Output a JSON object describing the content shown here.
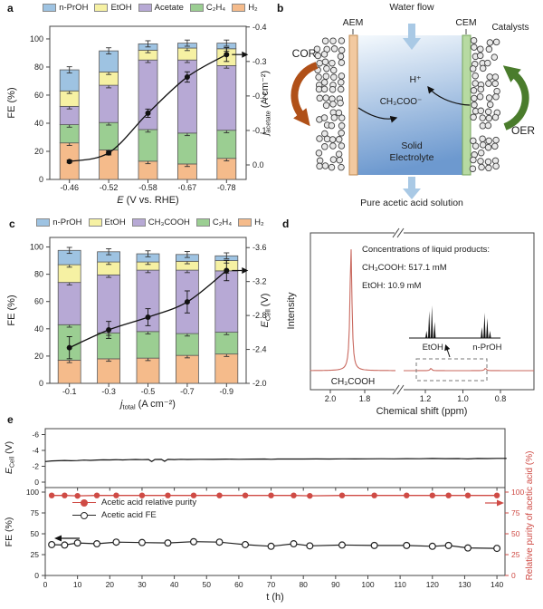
{
  "panel_labels": {
    "a": "a",
    "b": "b",
    "c": "c",
    "d": "d",
    "e": "e"
  },
  "colors": {
    "n_proh": "#9ec3e2",
    "etoh": "#f6f1a3",
    "acetate": "#b7a9d5",
    "c2h4": "#9bce92",
    "h2": "#f5bb8b",
    "nmr_trace": "#c9695f",
    "stability_red": "#cf4b45",
    "aem_fill": "#f2c9a0",
    "aem_stroke": "#bf8a52",
    "cem_fill": "#b7daa2",
    "cem_stroke": "#76a45c",
    "electrolyte_top": "#f4f9fd",
    "electrolyte_bottom": "#6d99cf",
    "cor_arrow": "#b05018",
    "oer_arrow": "#4a7c2c",
    "water_arrow": "#a9c9e5",
    "catalyst_fill": "#e9e9e9",
    "catalyst_stroke": "#3f3f3f"
  },
  "panel_b": {
    "water_flow": "Water flow",
    "aem": "AEM",
    "cem": "CEM",
    "catalysts": "Catalysts",
    "cor": "COR",
    "oer": "OER",
    "h_plus": "H⁺",
    "acetate_ion": "CH₃COO⁻",
    "solid_electrolyte": "Solid\nElectrolyte",
    "bottom_label": "Pure acetic acid solution"
  },
  "chart_data": [
    {
      "id": "a",
      "type": "bar",
      "categories": [
        "-0.46",
        "-0.52",
        "-0.58",
        "-0.67",
        "-0.78"
      ],
      "xlabel": {
        "sym": "E",
        "sub": "",
        "rest": " (V vs. RHE)"
      },
      "ylabel_left": "FE (%)",
      "yticks_left": [
        0,
        20,
        40,
        60,
        80,
        100
      ],
      "ylim_left": [
        0,
        109
      ],
      "ylabel_right": {
        "sym": "j",
        "sub": "acetate",
        "rest": " (A cm⁻²)"
      },
      "yticks_right": [
        -0.4,
        -0.3,
        -0.2,
        -0.1,
        0.0
      ],
      "ylim_right": [
        0.042,
        -0.402
      ],
      "seg_err": 1.8,
      "top_err": 2.2,
      "series": [
        {
          "name": "n-PrOH",
          "color_key": "n_proh",
          "values": [
            15,
            15,
            4.5,
            3.5,
            4
          ]
        },
        {
          "name": "EtOH",
          "color_key": "etoh",
          "values": [
            11,
            9.5,
            7,
            8.5,
            12
          ]
        },
        {
          "name": "Acetate",
          "color_key": "acetate",
          "values": [
            13,
            26.5,
            49.5,
            52,
            46
          ]
        },
        {
          "name": "C₂H₄",
          "color_key": "c2h4",
          "values": [
            13,
            19.5,
            22.5,
            22,
            20
          ]
        },
        {
          "name": "H₂",
          "color_key": "h2",
          "values": [
            26,
            21,
            13,
            11,
            15
          ]
        }
      ],
      "line": {
        "name": "j_acetate",
        "axis": "right",
        "values": [
          -0.01,
          -0.035,
          -0.15,
          -0.255,
          -0.32
        ],
        "err": [
          0.004,
          0.006,
          0.012,
          0.015,
          0.02
        ]
      }
    },
    {
      "id": "c",
      "type": "bar",
      "categories": [
        "-0.1",
        "-0.3",
        "-0.5",
        "-0.7",
        "-0.9"
      ],
      "xlabel": {
        "sym": "j",
        "sub": "total",
        "rest": " (A cm⁻²)"
      },
      "ylabel_left": "FE (%)",
      "yticks_left": [
        0,
        20,
        40,
        60,
        80,
        100
      ],
      "ylim_left": [
        0,
        107
      ],
      "ylabel_right": {
        "sym": "E",
        "sub": "Cell",
        "rest": " (V)"
      },
      "yticks_right": [
        -2.0,
        -2.4,
        -2.8,
        -3.2,
        -3.6
      ],
      "ylim_right": [
        -2.0,
        -3.72
      ],
      "seg_err": 1.8,
      "top_err": 2.2,
      "series": [
        {
          "name": "n-PrOH",
          "color_key": "n_proh",
          "values": [
            10.5,
            7.5,
            6,
            5,
            3.5
          ]
        },
        {
          "name": "EtOH",
          "color_key": "etoh",
          "values": [
            13,
            9.5,
            6,
            6.5,
            7.5
          ]
        },
        {
          "name": "CH₃COOH",
          "color_key": "acetate",
          "values": [
            31,
            42.5,
            45,
            46.5,
            45
          ]
        },
        {
          "name": "C₂H₄",
          "color_key": "c2h4",
          "values": [
            26,
            19,
            19.5,
            16,
            16
          ]
        },
        {
          "name": "H₂",
          "color_key": "h2",
          "values": [
            17,
            18,
            18.5,
            20.5,
            21.5
          ]
        }
      ],
      "line": {
        "name": "E_cell",
        "axis": "right",
        "values": [
          -2.42,
          -2.63,
          -2.78,
          -2.96,
          -3.33
        ],
        "err": [
          0.13,
          0.1,
          0.1,
          0.13,
          0.12
        ]
      }
    },
    {
      "id": "d",
      "type": "nmr",
      "xlabel": "Chemical shift (ppm)",
      "ylabel": "Intensity",
      "x_ticks_left": [
        2.0,
        1.8
      ],
      "x_ticks_right": [
        1.2,
        1.0,
        0.8
      ],
      "annotation_lines": [
        "Concentrations of liquid products:",
        "CH₃COOH: 517.1 mM",
        "EtOH: 10.9 mM"
      ],
      "main_peak": {
        "label": "CH₃COOH",
        "ppm": 1.88
      },
      "inset": {
        "peaks": [
          {
            "label": "EtOH",
            "ppm": 1.17,
            "lines": [
              [
                -5,
                8
              ],
              [
                -2,
                30
              ],
              [
                1,
                36
              ],
              [
                4,
                18
              ]
            ]
          },
          {
            "label": "n-PrOH",
            "ppm": 0.88,
            "lines": [
              [
                -4,
                12
              ],
              [
                -1,
                28
              ],
              [
                2,
                22
              ],
              [
                5,
                8
              ]
            ]
          }
        ]
      }
    },
    {
      "id": "e",
      "type": "stability",
      "top": {
        "ylabel": {
          "sym": "E",
          "sub": "Cell",
          "rest": " (V)"
        },
        "yticks": [
          0,
          -2,
          -4,
          -6
        ],
        "ylim": [
          0.7,
          -6.7
        ],
        "series": {
          "name": "E_cell",
          "x": [
            0,
            2,
            4,
            6,
            8,
            10,
            12,
            14,
            16,
            18,
            20,
            22,
            24,
            26,
            28,
            30,
            32,
            33,
            34,
            36,
            37,
            38,
            40,
            42,
            44,
            48,
            52,
            56,
            60,
            64,
            68,
            70,
            72,
            76,
            80,
            84,
            88,
            92,
            96,
            100,
            104,
            108,
            112,
            116,
            120,
            124,
            128,
            131,
            134,
            137,
            140,
            143
          ],
          "y": [
            -2.6,
            -2.67,
            -2.7,
            -2.73,
            -2.7,
            -2.72,
            -2.78,
            -2.74,
            -2.79,
            -2.81,
            -2.8,
            -2.83,
            -2.8,
            -2.83,
            -2.86,
            -2.83,
            -2.86,
            -2.6,
            -2.86,
            -2.87,
            -2.63,
            -2.87,
            -2.85,
            -2.88,
            -2.86,
            -2.88,
            -2.87,
            -2.9,
            -2.88,
            -2.9,
            -2.92,
            -2.88,
            -2.91,
            -2.92,
            -2.92,
            -2.93,
            -2.92,
            -2.94,
            -2.93,
            -2.94,
            -2.95,
            -2.94,
            -2.96,
            -2.95,
            -2.98,
            -2.96,
            -2.97,
            -2.93,
            -2.98,
            -2.97,
            -3.0,
            -3.0
          ]
        }
      },
      "bottom": {
        "ylabel_left": "FE (%)",
        "ylabel_right": "Relative purity of acetic acid (%)",
        "yticks": [
          0,
          25,
          50,
          75,
          100
        ],
        "ylim": [
          0,
          105.4
        ],
        "xlabel": "t (h)",
        "xticks": [
          0,
          10,
          20,
          30,
          40,
          50,
          60,
          70,
          80,
          90,
          100,
          110,
          120,
          130,
          140
        ],
        "xlim": [
          0,
          142.5
        ],
        "series": [
          {
            "name": "Acetic acid relative purity",
            "style": "filled_red",
            "x": [
              2,
              6,
              10,
              16,
              22,
              30,
              38,
              46,
              54,
              62,
              70,
              77,
              82,
              92,
              102,
              112,
              120,
              125,
              131,
              140
            ],
            "y": [
              96,
              96,
              95.5,
              96,
              96,
              96,
              96,
              96,
              96,
              96,
              96,
              96,
              95.5,
              96,
              96,
              96,
              96,
              96,
              96,
              96
            ]
          },
          {
            "name": "Acetic acid FE",
            "style": "open_black",
            "x": [
              2,
              6,
              10,
              16,
              22,
              30,
              38,
              46,
              54,
              62,
              70,
              77,
              82,
              92,
              102,
              112,
              120,
              125,
              131,
              140
            ],
            "y": [
              37,
              36.5,
              39,
              38,
              40,
              39.5,
              39,
              40.5,
              40,
              37,
              35,
              38,
              35.5,
              36.5,
              36,
              36,
              35,
              36,
              33,
              32.5
            ]
          }
        ]
      }
    }
  ]
}
